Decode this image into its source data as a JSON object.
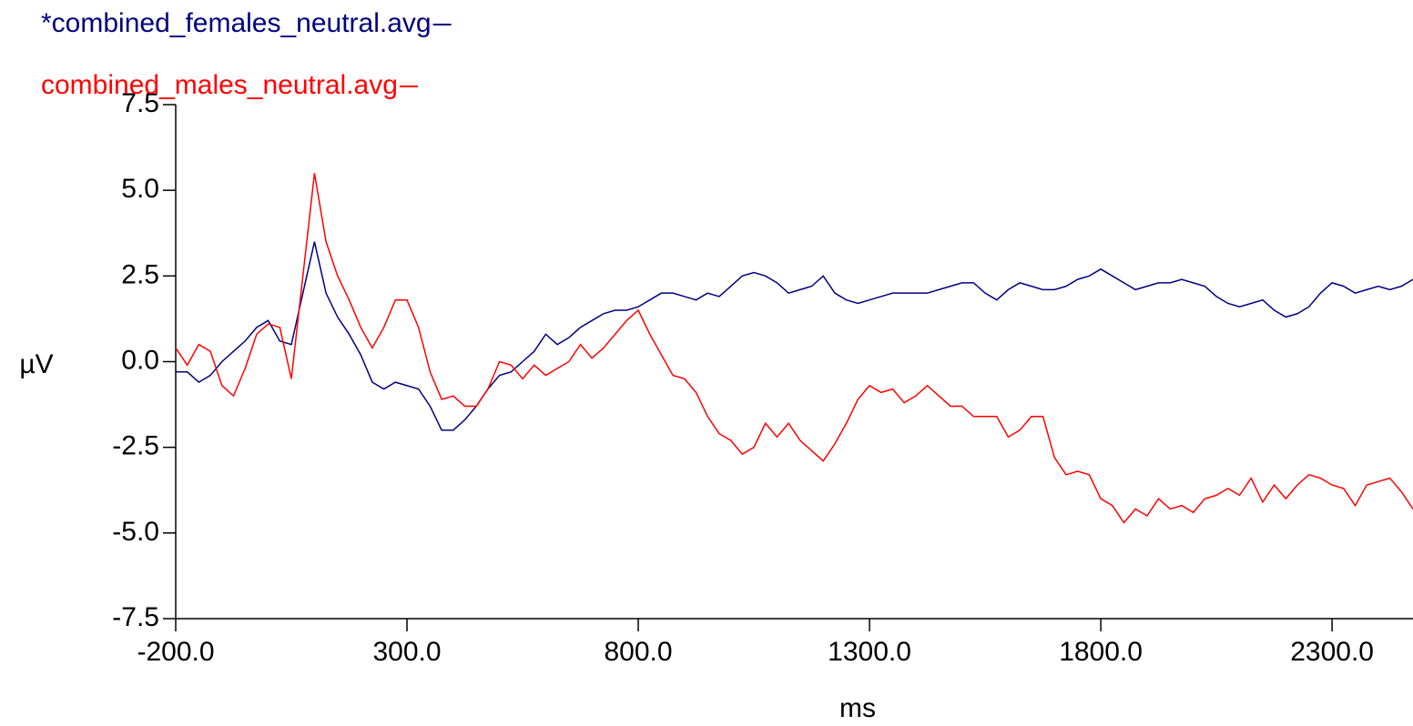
{
  "chart_data": {
    "type": "line",
    "xlabel": "ms",
    "ylabel": "µV",
    "xlim": [
      -200,
      2475
    ],
    "ylim": [
      -7.5,
      7.5
    ],
    "xticks": [
      {
        "value": -200,
        "label": "-200.0"
      },
      {
        "value": 300,
        "label": "300.0"
      },
      {
        "value": 800,
        "label": "800.0"
      },
      {
        "value": 1300,
        "label": "1300.0"
      },
      {
        "value": 1800,
        "label": "1800.0"
      },
      {
        "value": 2300,
        "label": "2300.0"
      }
    ],
    "yticks": [
      {
        "value": 7.5,
        "label": "7.5"
      },
      {
        "value": 5,
        "label": "5.0"
      },
      {
        "value": 2.5,
        "label": "2.5"
      },
      {
        "value": 0,
        "label": "0.0"
      },
      {
        "value": -2.5,
        "label": "-2.5"
      },
      {
        "value": -5,
        "label": "-5.0"
      },
      {
        "value": -7.5,
        "label": "-7.5"
      }
    ],
    "grid": false,
    "legend": "top-left",
    "x": [
      -200,
      -175,
      -150,
      -125,
      -100,
      -75,
      -50,
      -25,
      0,
      25,
      50,
      75,
      100,
      125,
      150,
      175,
      200,
      225,
      250,
      275,
      300,
      325,
      350,
      375,
      400,
      425,
      450,
      475,
      500,
      525,
      550,
      575,
      600,
      625,
      650,
      675,
      700,
      725,
      750,
      775,
      800,
      825,
      850,
      875,
      900,
      925,
      950,
      975,
      1000,
      1025,
      1050,
      1075,
      1100,
      1125,
      1150,
      1175,
      1200,
      1225,
      1250,
      1275,
      1300,
      1325,
      1350,
      1375,
      1400,
      1425,
      1450,
      1475,
      1500,
      1525,
      1550,
      1575,
      1600,
      1625,
      1650,
      1675,
      1700,
      1725,
      1750,
      1775,
      1800,
      1825,
      1850,
      1875,
      1900,
      1925,
      1950,
      1975,
      2000,
      2025,
      2050,
      2075,
      2100,
      2125,
      2150,
      2175,
      2200,
      2225,
      2250,
      2275,
      2300,
      2325,
      2350,
      2375,
      2400,
      2425,
      2450,
      2475
    ],
    "series": [
      {
        "name": "*combined_females_neutral.avg",
        "color": "#000080",
        "values": [
          -0.3,
          -0.3,
          -0.6,
          -0.4,
          0.0,
          0.3,
          0.6,
          1.0,
          1.2,
          0.6,
          0.5,
          2.0,
          3.5,
          2.0,
          1.3,
          0.8,
          0.2,
          -0.6,
          -0.8,
          -0.6,
          -0.7,
          -0.8,
          -1.3,
          -2.0,
          -2.0,
          -1.7,
          -1.3,
          -0.8,
          -0.4,
          -0.3,
          0.0,
          0.3,
          0.8,
          0.5,
          0.7,
          1.0,
          1.2,
          1.4,
          1.5,
          1.5,
          1.6,
          1.8,
          2.0,
          2.0,
          1.9,
          1.8,
          2.0,
          1.9,
          2.2,
          2.5,
          2.6,
          2.5,
          2.3,
          2.0,
          2.1,
          2.2,
          2.5,
          2.0,
          1.8,
          1.7,
          1.8,
          1.9,
          2.0,
          2.0,
          2.0,
          2.0,
          2.1,
          2.2,
          2.3,
          2.3,
          2.0,
          1.8,
          2.1,
          2.3,
          2.2,
          2.1,
          2.1,
          2.2,
          2.4,
          2.5,
          2.7,
          2.5,
          2.3,
          2.1,
          2.2,
          2.3,
          2.3,
          2.4,
          2.3,
          2.2,
          1.9,
          1.7,
          1.6,
          1.7,
          1.8,
          1.5,
          1.3,
          1.4,
          1.6,
          2.0,
          2.3,
          2.2,
          2.0,
          2.1,
          2.2,
          2.1,
          2.2,
          2.4
        ]
      },
      {
        "name": "combined_males_neutral.avg",
        "color": "#ff0000",
        "values": [
          0.4,
          -0.1,
          0.5,
          0.3,
          -0.7,
          -1.0,
          -0.2,
          0.8,
          1.1,
          1.0,
          -0.5,
          2.5,
          5.5,
          3.5,
          2.5,
          1.8,
          1.0,
          0.4,
          1.0,
          1.8,
          1.8,
          1.0,
          -0.3,
          -1.1,
          -1.0,
          -1.3,
          -1.3,
          -0.8,
          0.0,
          -0.1,
          -0.5,
          -0.1,
          -0.4,
          -0.2,
          0.0,
          0.5,
          0.1,
          0.4,
          0.8,
          1.2,
          1.5,
          0.8,
          0.2,
          -0.4,
          -0.5,
          -0.9,
          -1.6,
          -2.1,
          -2.3,
          -2.7,
          -2.5,
          -1.8,
          -2.2,
          -1.8,
          -2.3,
          -2.6,
          -2.9,
          -2.4,
          -1.8,
          -1.1,
          -0.7,
          -0.9,
          -0.8,
          -1.2,
          -1.0,
          -0.7,
          -1.0,
          -1.3,
          -1.3,
          -1.6,
          -1.6,
          -1.6,
          -2.2,
          -2.0,
          -1.6,
          -1.6,
          -2.8,
          -3.3,
          -3.2,
          -3.3,
          -4.0,
          -4.2,
          -4.7,
          -4.3,
          -4.5,
          -4.0,
          -4.3,
          -4.2,
          -4.4,
          -4.0,
          -3.9,
          -3.7,
          -3.9,
          -3.4,
          -4.1,
          -3.6,
          -4.0,
          -3.6,
          -3.3,
          -3.4,
          -3.6,
          -3.7,
          -4.2,
          -3.6,
          -3.5,
          -3.4,
          -3.8,
          -4.3
        ]
      }
    ]
  }
}
